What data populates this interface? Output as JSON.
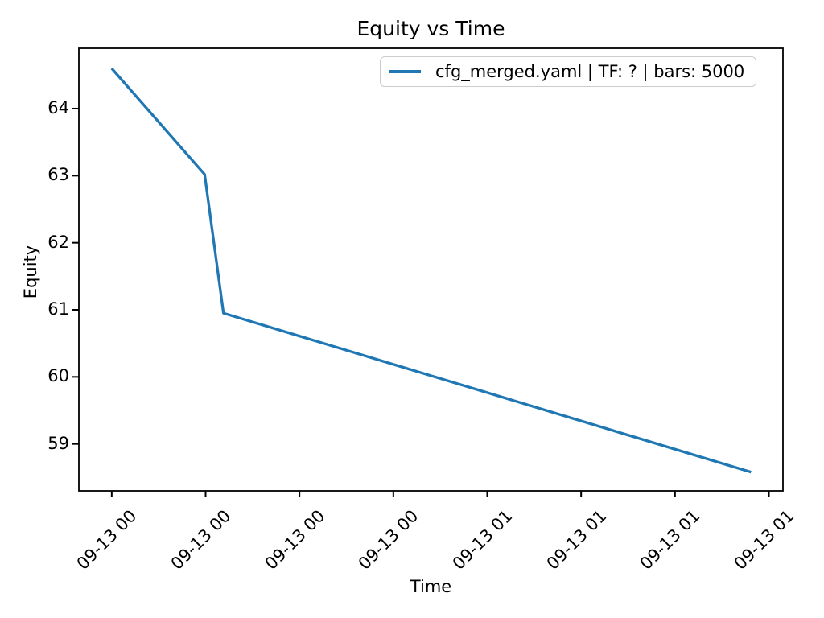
{
  "figure": {
    "background_color": "#ffffff",
    "text_color": "#000000",
    "spine_color": "#000000"
  },
  "chart_data": {
    "type": "line",
    "title": "Equity vs Time",
    "xlabel": "Time",
    "ylabel": "Equity",
    "grid": false,
    "legend_position": "upper right",
    "x_unit": "tick-spacing units (time axis, ticks evenly spaced)",
    "xlim": [
      -0.35,
      7.15
    ],
    "ylim": [
      58.3,
      64.9
    ],
    "x_tick_positions": [
      0,
      1,
      2,
      3,
      4,
      5,
      6,
      7
    ],
    "x_tick_labels": [
      "09-13 00",
      "09-13 00",
      "09-13 00",
      "09-13 00",
      "09-13 01",
      "09-13 01",
      "09-13 01",
      "09-13 01"
    ],
    "x_tick_rotation_deg": 45,
    "y_tick_values": [
      59,
      60,
      61,
      62,
      63,
      64
    ],
    "y_tick_labels": [
      "59",
      "60",
      "61",
      "62",
      "63",
      "64"
    ],
    "series": [
      {
        "name": "cfg_merged.yaml | TF: ? | bars: 5000",
        "color": "#1f77b4",
        "points": [
          {
            "x": 0.0,
            "y": 64.6
          },
          {
            "x": 0.99,
            "y": 63.02
          },
          {
            "x": 1.19,
            "y": 60.95
          },
          {
            "x": 6.81,
            "y": 58.58
          }
        ]
      }
    ]
  }
}
